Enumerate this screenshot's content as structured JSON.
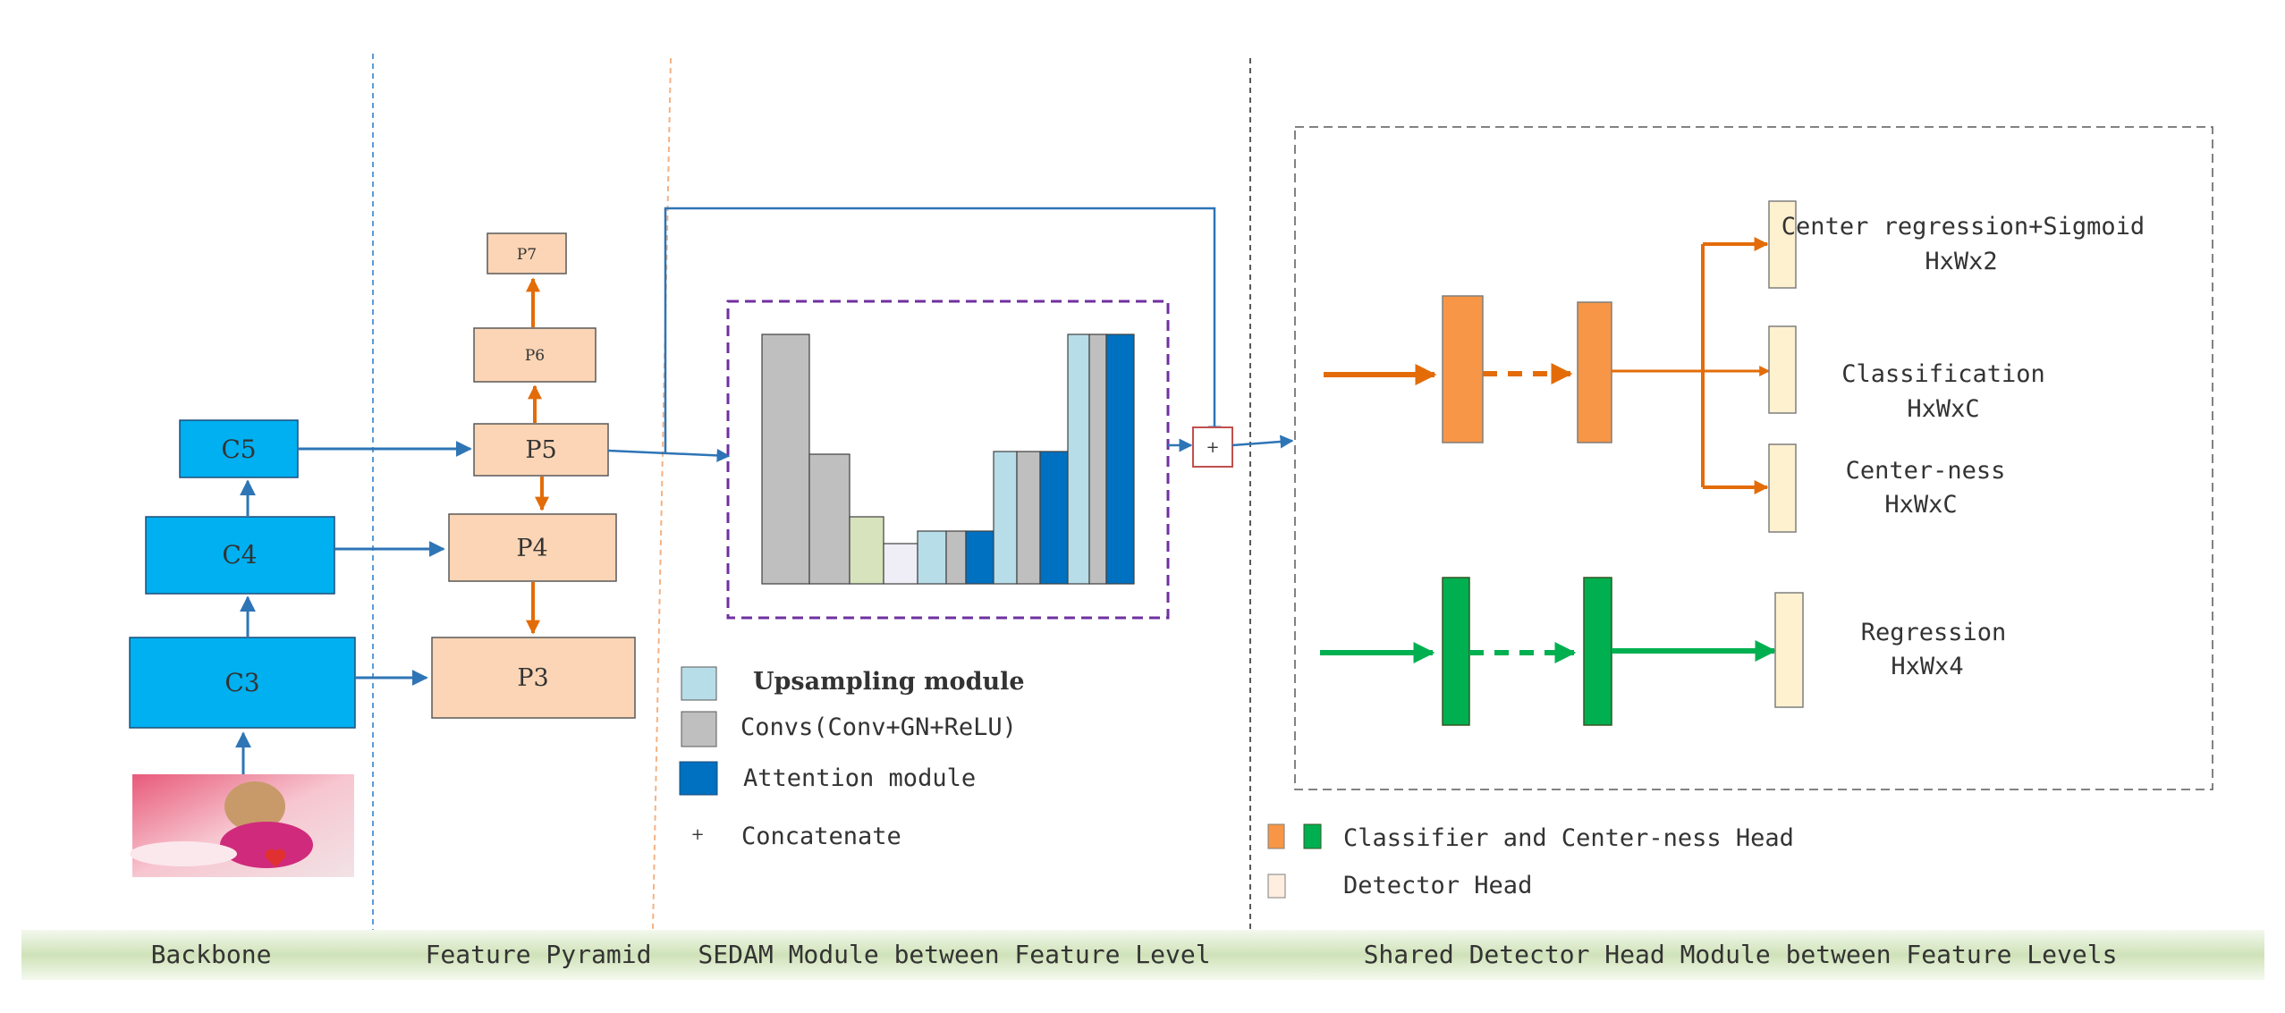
{
  "backbone": {
    "c5": "C5",
    "c4": "C4",
    "c3": "C3"
  },
  "pyramid": {
    "p7": "P7",
    "p6": "P6",
    "p5": "P5",
    "p4": "P4",
    "p3": "P3"
  },
  "sedam_bars": [
    {
      "color": "#bfbfbf",
      "level": 1.0
    },
    {
      "color": "#bfbfbf",
      "level": 0.52
    },
    {
      "color": "#d6e3bc",
      "level": 0.27
    },
    {
      "color": "#efedf5",
      "level": 0.16
    },
    {
      "color": "#b7dde8",
      "level": 0.21
    },
    {
      "color": "#bfbfbf",
      "level": 0.21
    },
    {
      "color": "#0070c0",
      "level": 0.21
    },
    {
      "color": "#b7dde8",
      "level": 0.53
    },
    {
      "color": "#bfbfbf",
      "level": 0.53
    },
    {
      "color": "#0070c0",
      "level": 0.53
    },
    {
      "color": "#b7dde8",
      "level": 1.0
    },
    {
      "color": "#bfbfbf",
      "level": 1.0
    },
    {
      "color": "#0070c0",
      "level": 1.0
    }
  ],
  "concat_symbol": "+",
  "legend_left": {
    "upsampling": "Upsampling module",
    "convs": "Convs(Conv+GN+ReLU)",
    "attention": "Attention module",
    "concat_symbol": "+",
    "concat": "Concatenate"
  },
  "head": {
    "center_regression": "Center regression+Sigmoid",
    "center_regression_dim": "HxWx2",
    "classification": "Classification",
    "classification_dim": "HxWxC",
    "centerness": "Center-ness",
    "centerness_dim": "HxWxC",
    "regression": "Regression",
    "regression_dim": "HxWx4"
  },
  "legend_right": {
    "classifier_head": "Classifier and Center-ness Head",
    "detector_head": "Detector Head"
  },
  "bottom_bar": {
    "backbone": "Backbone",
    "feature_pyramid": "Feature Pyramid",
    "sedam": "SEDAM Module between Feature Level",
    "shared_head": "Shared Detector Head Module between Feature Levels"
  },
  "colors": {
    "backbone_block": "#00b0f0",
    "pyramid_block": "#fbd5b5",
    "orange": "#e36c09",
    "blue_line": "#2e75b6",
    "green": "#00b050",
    "output_block": "#fdf1d0",
    "bottom_bar": "#d9e8c8"
  }
}
